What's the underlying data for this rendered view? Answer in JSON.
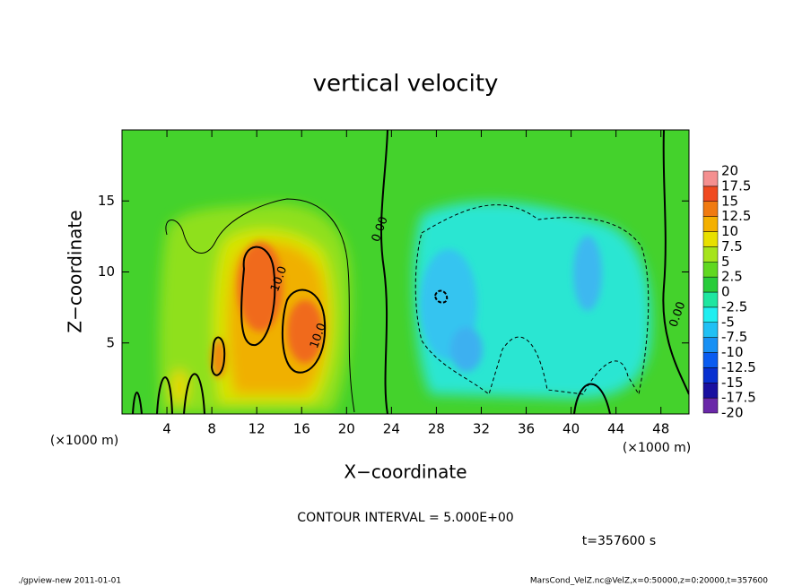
{
  "chart_data": {
    "type": "contour",
    "title": "vertical velocity",
    "x_label": "X−coordinate",
    "y_label": "Z−coordinate",
    "x_units": [
      "(×1000 m)",
      "(×1000 m)"
    ],
    "xlim": [
      0,
      50.5
    ],
    "ylim": [
      0,
      20
    ],
    "xticks": [
      4,
      8,
      12,
      16,
      20,
      24,
      28,
      32,
      36,
      40,
      44,
      48
    ],
    "yticks": [
      5,
      10,
      15
    ],
    "contour_labels": [
      {
        "text": "0.00",
        "x": 23,
        "y": 13
      },
      {
        "text": "10.0",
        "x": 14,
        "y": 9.5
      },
      {
        "text": "10.0",
        "x": 17.5,
        "y": 5.5
      },
      {
        "text": "0.00",
        "x": 49.5,
        "y": 7
      }
    ],
    "colorbar": {
      "levels": [
        -20,
        -17.5,
        -15,
        -12.5,
        -10,
        -7.5,
        -5,
        -2.5,
        0,
        2.5,
        5,
        7.5,
        10,
        12.5,
        15,
        17.5,
        20
      ],
      "colors": [
        "#6a28a8",
        "#1a10a0",
        "#0830d0",
        "#0a5cf0",
        "#1890f4",
        "#20c0f4",
        "#20eef0",
        "#1ee6a0",
        "#28cc3a",
        "#60d820",
        "#a6e41c",
        "#e8e000",
        "#f4b000",
        "#f07a10",
        "#f04a20",
        "#f49090"
      ]
    },
    "contour_interval_text": "CONTOUR INTERVAL = 5.000E+00",
    "time_text": "t=357600 s",
    "footer_left": "./gpview-new   2011-01-01",
    "footer_right": "MarsCond_VelZ.nc@VelZ,x=0:50000,z=0:20000,t=357600"
  }
}
